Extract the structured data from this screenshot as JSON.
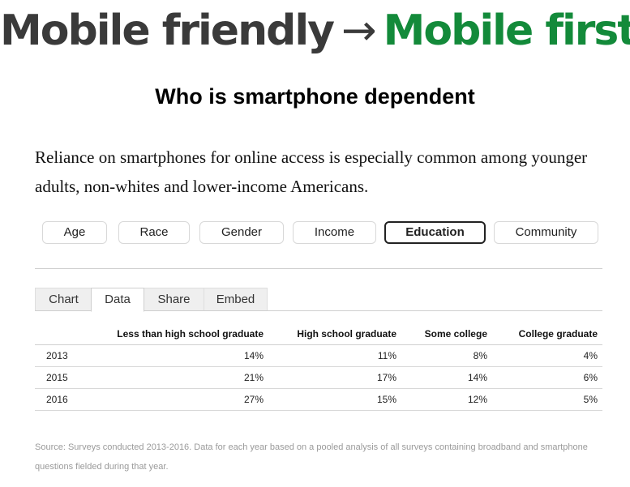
{
  "headline": {
    "part1": "Mobile friendly",
    "arrow": "→",
    "part2": "Mobile first",
    "colors": {
      "gray": "#3a3a3a",
      "green": "#138a3a"
    }
  },
  "title": "Who is smartphone dependent",
  "description": "Reliance on smartphones for online access is especially common among younger adults, non-whites and lower-income Americans.",
  "segments": [
    {
      "label": "Age"
    },
    {
      "label": "Race"
    },
    {
      "label": "Gender"
    },
    {
      "label": "Income"
    },
    {
      "label": "Education",
      "active": true
    },
    {
      "label": "Community"
    }
  ],
  "tabs": [
    {
      "label": "Chart"
    },
    {
      "label": "Data",
      "active": true
    },
    {
      "label": "Share"
    },
    {
      "label": "Embed"
    }
  ],
  "chart_data": {
    "type": "table",
    "columns": [
      "",
      "Less than high school graduate",
      "High school graduate",
      "Some college",
      "College graduate"
    ],
    "rows": [
      {
        "year": "2013",
        "values": [
          "14%",
          "11%",
          "8%",
          "4%"
        ]
      },
      {
        "year": "2015",
        "values": [
          "21%",
          "17%",
          "14%",
          "6%"
        ]
      },
      {
        "year": "2016",
        "values": [
          "27%",
          "15%",
          "12%",
          "5%"
        ]
      }
    ]
  },
  "source": "Source: Surveys conducted 2013-2016. Data for each year based on a pooled analysis of all surveys containing broadband and smartphone questions fielded during that year."
}
